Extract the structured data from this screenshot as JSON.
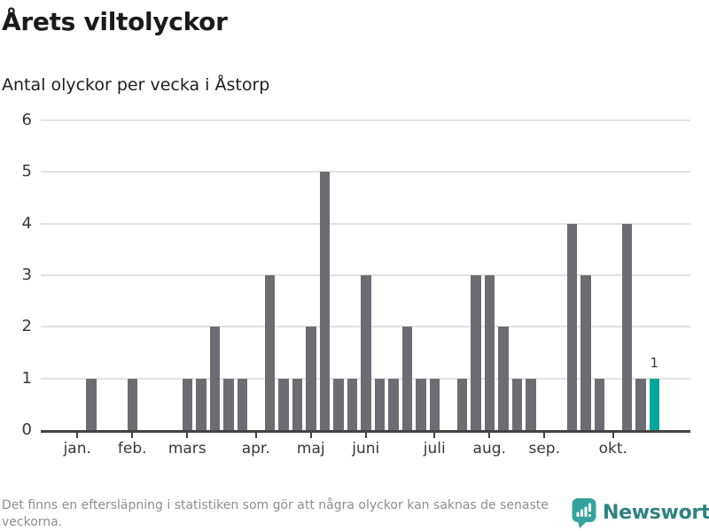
{
  "header": {
    "title": "Årets viltolyckor",
    "subtitle": "Antal olyckor per vecka i Åstorp"
  },
  "chart_data": {
    "type": "bar",
    "title": "Årets viltolyckor",
    "subtitle": "Antal olyckor per vecka i Åstorp",
    "x_unit": "vecka",
    "ylabel": "Antal olyckor",
    "values": [
      1,
      0,
      0,
      1,
      0,
      0,
      0,
      1,
      1,
      2,
      1,
      1,
      0,
      3,
      1,
      1,
      2,
      5,
      1,
      1,
      3,
      1,
      1,
      2,
      1,
      1,
      0,
      1,
      3,
      3,
      2,
      1,
      1,
      0,
      0,
      4,
      3,
      1,
      0,
      4,
      1,
      1
    ],
    "ylim": [
      0,
      6
    ],
    "y_ticks": [
      0,
      1,
      2,
      3,
      4,
      5,
      6
    ],
    "month_ticks": [
      {
        "label": "jan.",
        "week_offset": -1
      },
      {
        "label": "feb.",
        "week_offset": 3
      },
      {
        "label": "mars",
        "week_offset": 7
      },
      {
        "label": "apr.",
        "week_offset": 12
      },
      {
        "label": "maj",
        "week_offset": 16
      },
      {
        "label": "juni",
        "week_offset": 20
      },
      {
        "label": "juli",
        "week_offset": 25
      },
      {
        "label": "aug.",
        "week_offset": 29
      },
      {
        "label": "sep.",
        "week_offset": 33
      },
      {
        "label": "okt.",
        "week_offset": 38
      }
    ],
    "grid": true,
    "legend": "none",
    "highlight_last_bar": true,
    "last_bar_label": "1",
    "bar_color": "#6d6c73",
    "highlight_color": "#00a69c",
    "gridline_color": "#e2e2e2",
    "axis_color": "#434343"
  },
  "footer": {
    "disclaimer": "Det finns en eftersläpning i statistiken som gör att några olyckor kan saknas de senaste veckorna.",
    "brand": "Newsworthy",
    "brand_color": "#2f8380",
    "brand_icon_color": "#35a39c"
  }
}
